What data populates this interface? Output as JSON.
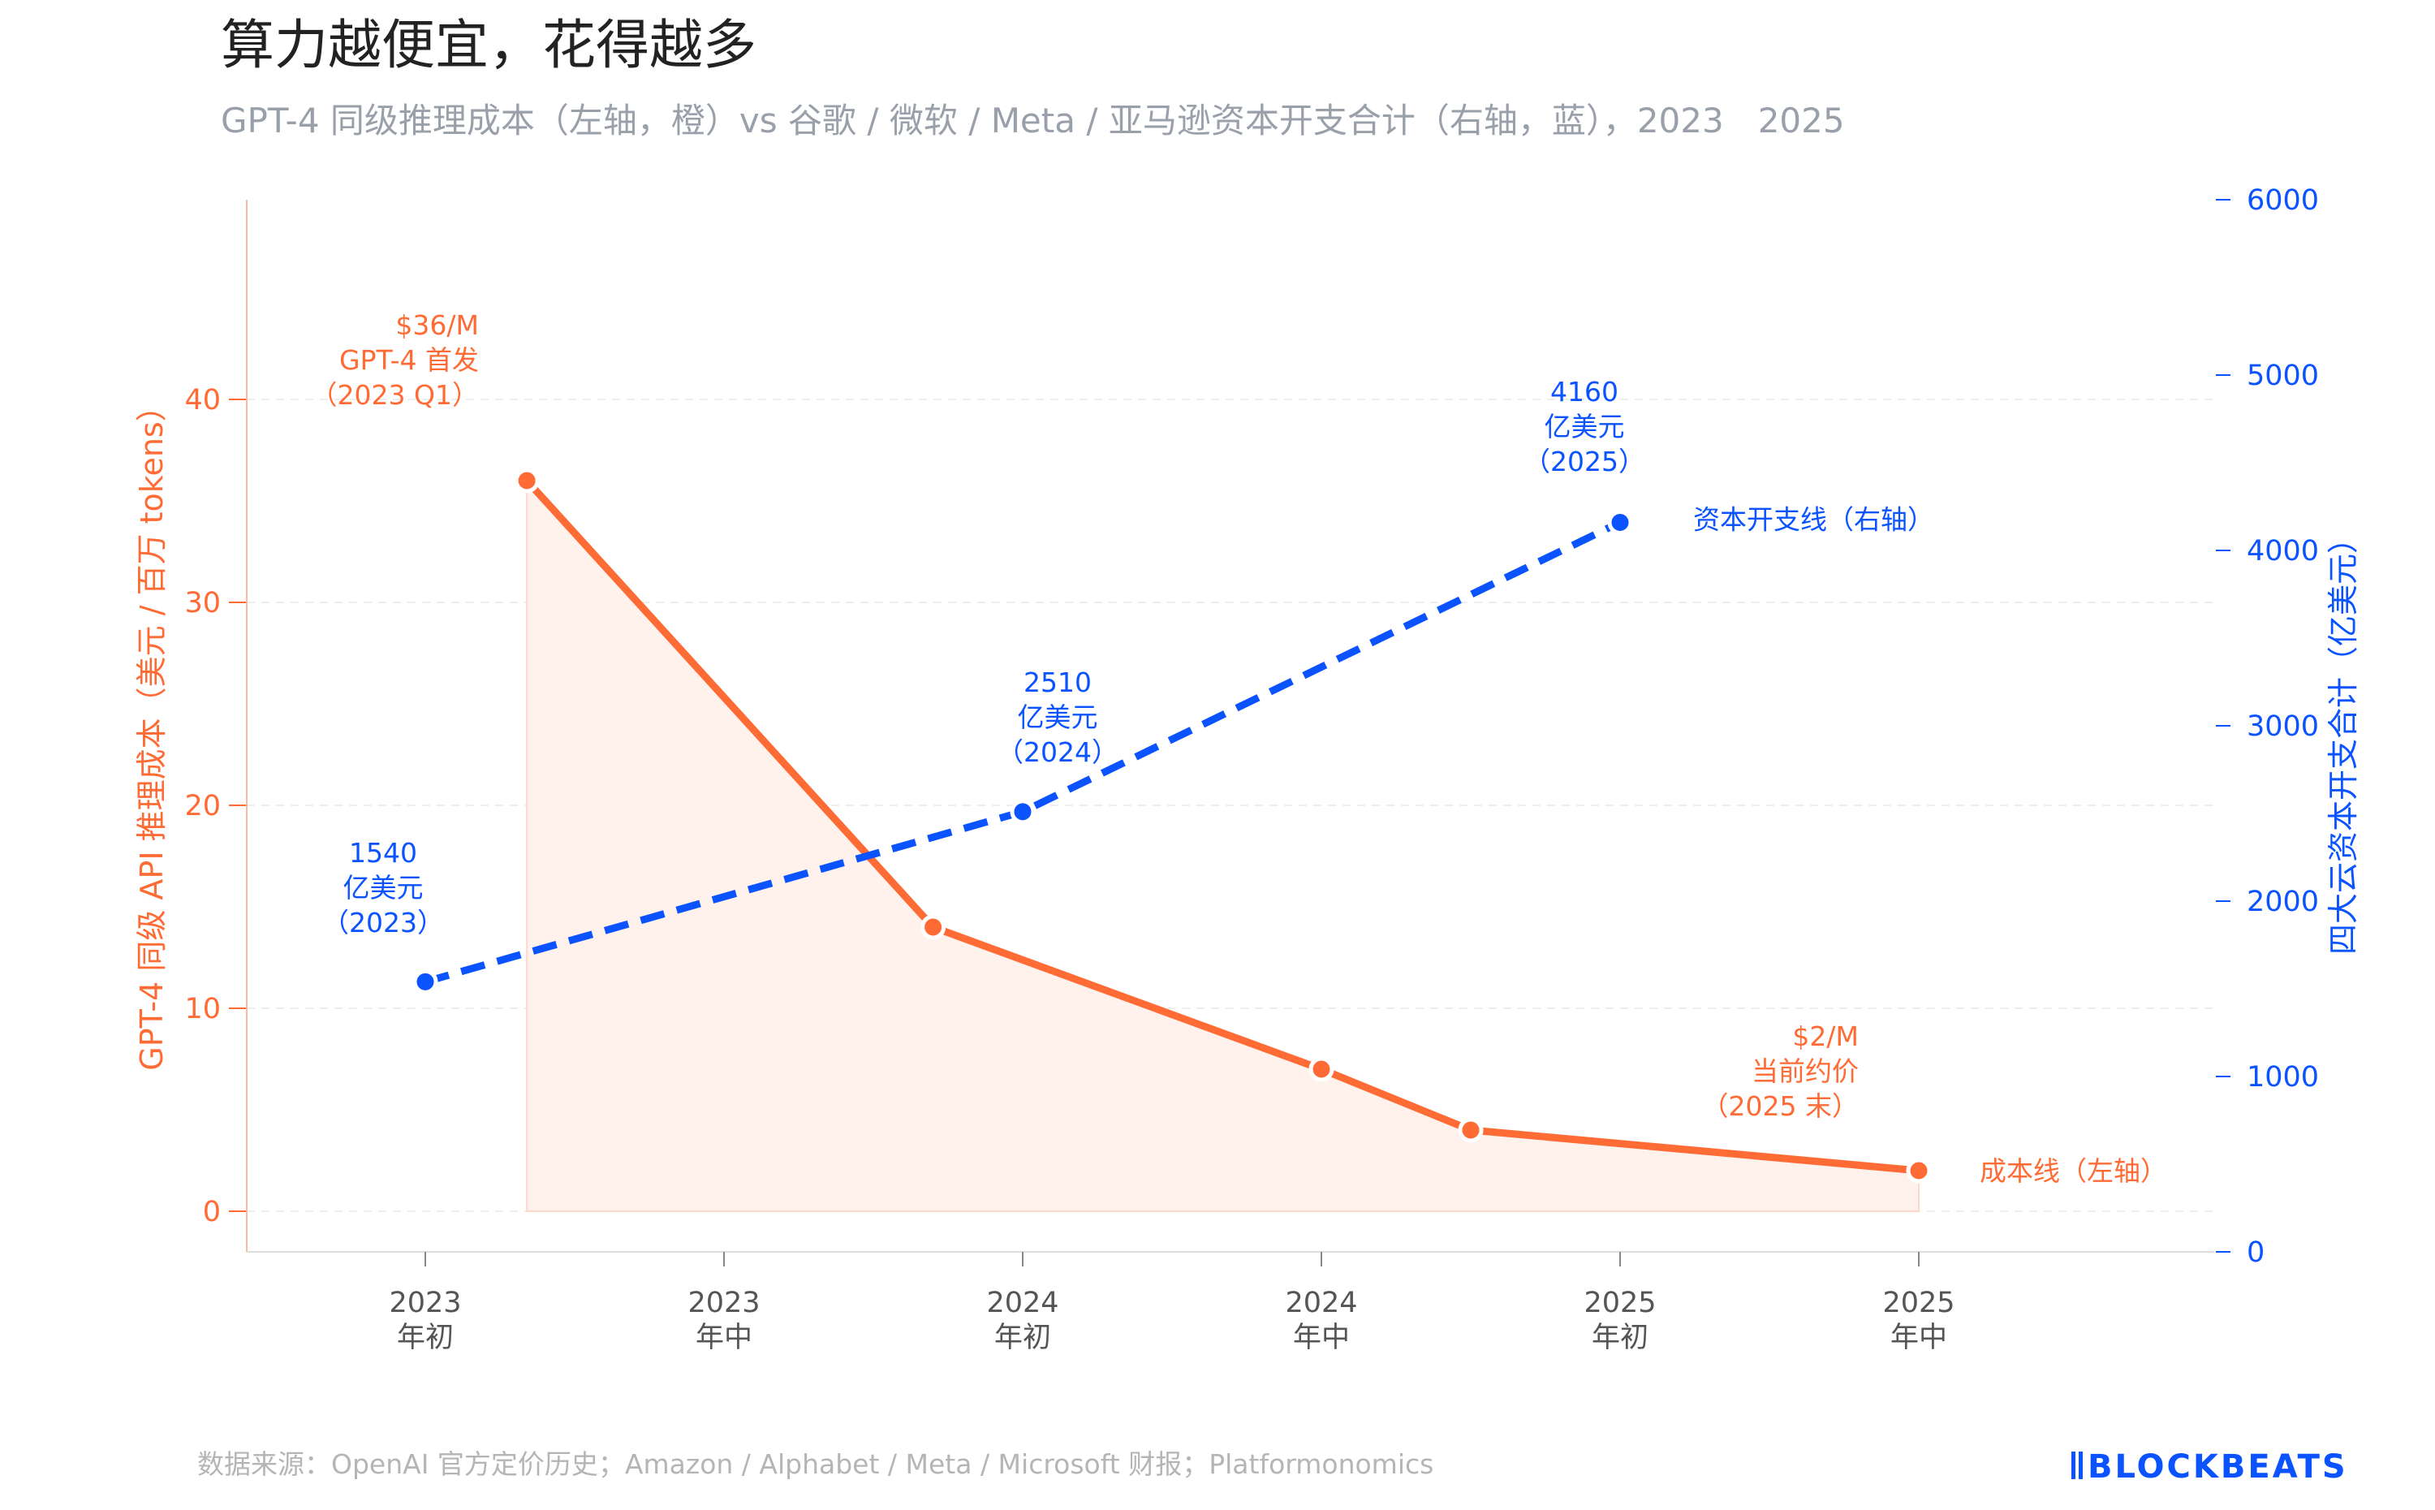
{
  "chart_data": {
    "type": "line",
    "title": "算力越便宜，花得越多",
    "subtitle": "GPT-4 同级推理成本（左轴，橙）vs 谷歌 / 微软 / Meta / 亚马逊资本开支合计（右轴，蓝），2023　2025",
    "x_ticks": [
      {
        "x": 2023.0,
        "year": "2023",
        "label": "年初"
      },
      {
        "x": 2023.5,
        "year": "2023",
        "label": "年中"
      },
      {
        "x": 2024.0,
        "year": "2024",
        "label": "年初"
      },
      {
        "x": 2024.5,
        "year": "2024",
        "label": "年中"
      },
      {
        "x": 2025.0,
        "year": "2025",
        "label": "年初"
      },
      {
        "x": 2025.5,
        "year": "2025",
        "label": "年中"
      }
    ],
    "xlim": [
      2022.7,
      2026.0
    ],
    "left_axis": {
      "label": "GPT-4 同级 API 推理成本（美元 / 百万 tokens）",
      "ylim": [
        -2,
        50
      ],
      "ticks": [
        "0",
        "10",
        "20",
        "30",
        "40"
      ],
      "color": "#ff6b35"
    },
    "right_axis": {
      "label": "四大云资本开支合计（亿美元）",
      "ylim": [
        0,
        6000
      ],
      "ticks": [
        "0",
        "1000",
        "2000",
        "3000",
        "4000",
        "5000",
        "6000"
      ],
      "color": "#0a53ff"
    },
    "grid": true,
    "series": [
      {
        "name": "成本线（左轴）",
        "axis": "left",
        "color": "#ff6b35",
        "style": "solid",
        "area_fill": true,
        "x": [
          2023.17,
          2023.85,
          2024.5,
          2024.75,
          2025.5
        ],
        "y": [
          36,
          14,
          7,
          4,
          2
        ]
      },
      {
        "name": "资本开支线（右轴）",
        "axis": "right",
        "color": "#0a53ff",
        "style": "dashed",
        "x": [
          2023.0,
          2024.0,
          2025.0
        ],
        "y": [
          1540,
          2510,
          4160
        ]
      }
    ],
    "annotations": [
      {
        "lines": [
          "$36/M",
          "GPT-4 首发",
          "（2023 Q1）"
        ],
        "color": "orange"
      },
      {
        "lines": [
          "$2/M",
          "当前约价",
          "（2025 末）"
        ],
        "color": "orange"
      },
      {
        "lines": [
          "1540",
          "亿美元",
          "（2023）"
        ],
        "color": "blue"
      },
      {
        "lines": [
          "2510",
          "亿美元",
          "（2024）"
        ],
        "color": "blue"
      },
      {
        "lines": [
          "4160",
          "亿美元",
          "（2025）"
        ],
        "color": "blue"
      }
    ]
  },
  "footer": {
    "source": "数据来源：OpenAI 官方定价历史；Amazon / Alphabet / Meta / Microsoft 财报；Platformonomics",
    "logo": "BLOCKBEATS"
  }
}
